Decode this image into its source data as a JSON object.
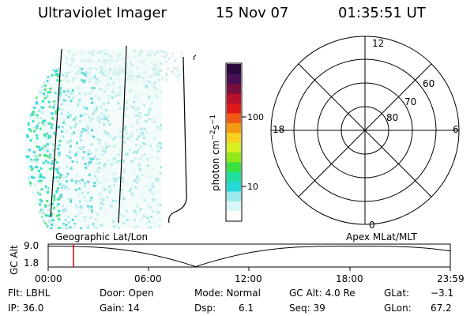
{
  "header": {
    "title": "Ultraviolet Imager",
    "date": "15 Nov 07",
    "time": "01:35:51 UT"
  },
  "colorbar": {
    "unit": "photon cm",
    "unit_sup1": "−2",
    "unit_s": "s",
    "unit_sup2": "−1",
    "tick_100": "100",
    "tick_10": "10",
    "colors": [
      "#2b0a3d",
      "#4a1055",
      "#7a0f3a",
      "#b8102a",
      "#e01818",
      "#f05a14",
      "#f49a10",
      "#f8d020",
      "#d8f020",
      "#90e818",
      "#38e040",
      "#20e0a0",
      "#28d8d8",
      "#9aeaea",
      "#d8f6f6",
      "#ffffff"
    ]
  },
  "polar": {
    "label_top": "12",
    "label_left": "18",
    "label_right": "6",
    "label_bottom": "0",
    "ring_60": "60",
    "ring_70": "70",
    "ring_80": "80"
  },
  "timeline": {
    "ylabel": "GC Alt",
    "y_high": "9.0",
    "y_low": "1.8",
    "left_label": "Geographic Lat/Lon",
    "right_label": "Apex MLat/MLT",
    "ticks": [
      "00:00",
      "06:00",
      "12:00",
      "18:00",
      "23:59"
    ],
    "marker_color": "#e00000"
  },
  "info": {
    "flt": "Flt: LBHL",
    "ip": "IP: 36.0",
    "door": "Door: Open",
    "gain": "Gain: 14",
    "mode": "Mode: Normal",
    "dsp_label": "Dsp:",
    "dsp_value": "6.1",
    "gcalt": "GC Alt: 4.0 Re",
    "seq": "Seq: 39",
    "glat_label": "GLat:",
    "glat_value": "−3.1",
    "glon_label": "GLon:",
    "glon_value": "67.2"
  }
}
